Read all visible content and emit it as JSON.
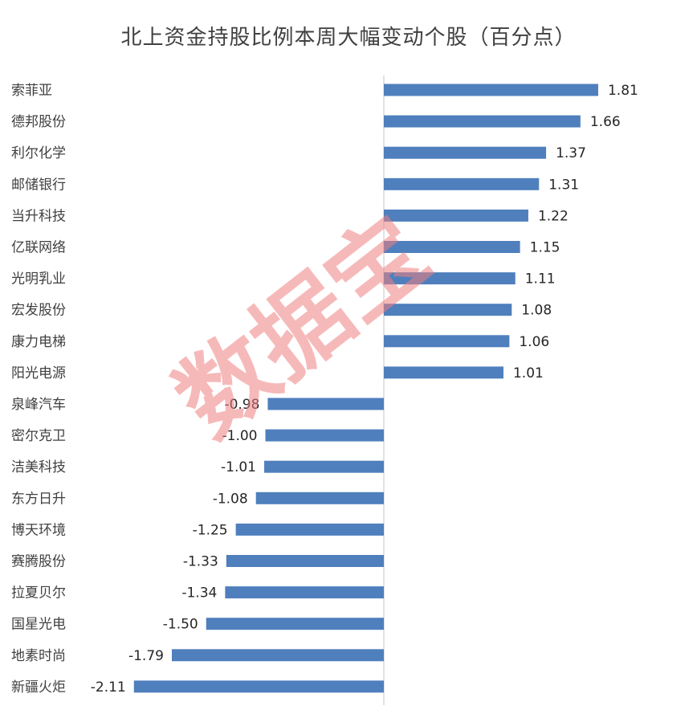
{
  "chart_data": {
    "type": "bar",
    "orientation": "horizontal",
    "title": "北上资金持股比例本周大幅变动个股（百分点）",
    "categories": [
      "索菲亚",
      "德邦股份",
      "利尔化学",
      "邮储银行",
      "当升科技",
      "亿联网络",
      "光明乳业",
      "宏发股份",
      "康力电梯",
      "阳光电源",
      "泉峰汽车",
      "密尔克卫",
      "洁美科技",
      "东方日升",
      "博天环境",
      "赛腾股份",
      "拉夏贝尔",
      "国星光电",
      "地素时尚",
      "新疆火炬"
    ],
    "values": [
      1.81,
      1.66,
      1.37,
      1.31,
      1.22,
      1.15,
      1.11,
      1.08,
      1.06,
      1.01,
      -0.98,
      -1.0,
      -1.01,
      -1.08,
      -1.25,
      -1.33,
      -1.34,
      -1.5,
      -1.79,
      -2.11
    ],
    "value_labels": [
      "1.81",
      "1.66",
      "1.37",
      "1.31",
      "1.22",
      "1.15",
      "1.11",
      "1.08",
      "1.06",
      "1.01",
      "-0.98",
      "-1.00",
      "-1.01",
      "-1.08",
      "-1.25",
      "-1.33",
      "-1.34",
      "-1.50",
      "-1.79",
      "-2.11"
    ],
    "bar_color": "#4f7fbd",
    "axis_color": "#d9d9d9",
    "grid": false,
    "legend": "none",
    "watermark": "数据宝"
  }
}
